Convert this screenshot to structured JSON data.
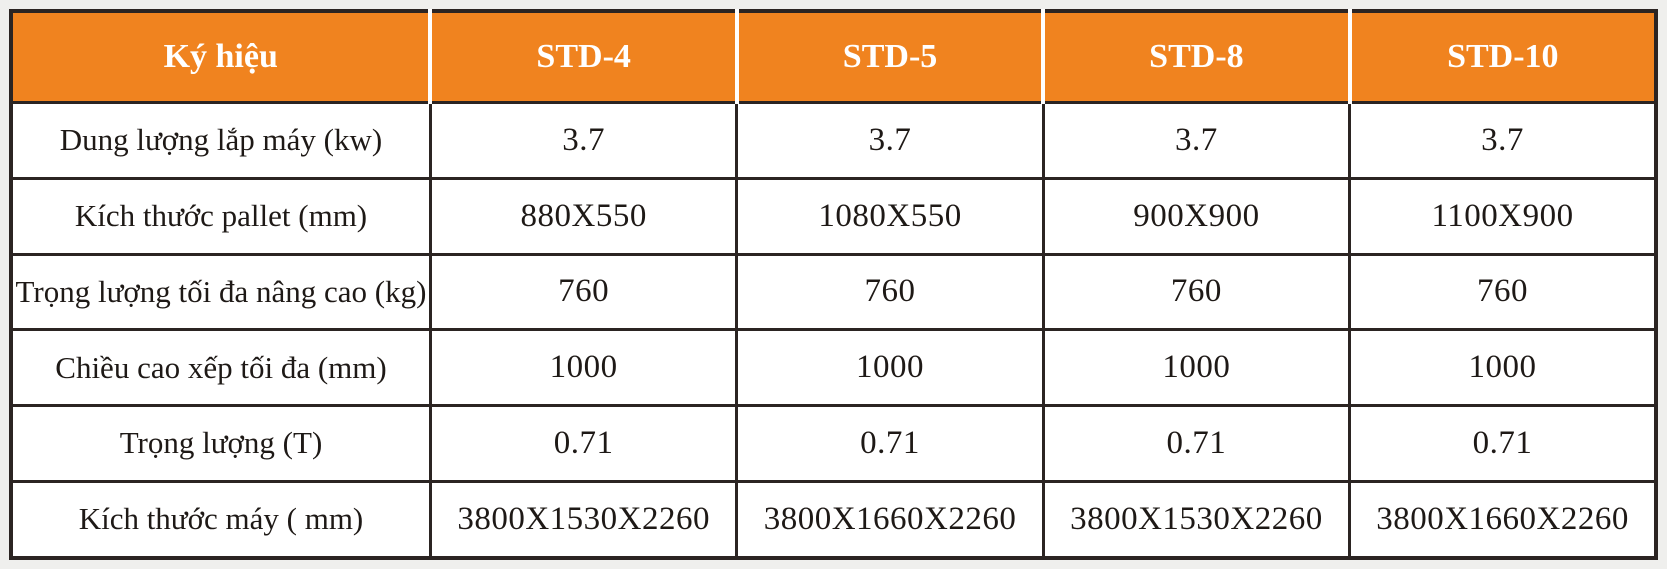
{
  "table": {
    "header": {
      "label_col": "Ký hiệu",
      "columns": [
        "STD-4",
        "STD-5",
        "STD-8",
        "STD-10"
      ]
    },
    "rows": [
      {
        "label": "Dung lượng lắp máy (kw)",
        "values": [
          "3.7",
          "3.7",
          "3.7",
          "3.7"
        ]
      },
      {
        "label": "Kích thước pallet (mm)",
        "values": [
          "880X550",
          "1080X550",
          "900X900",
          "1100X900"
        ]
      },
      {
        "label": "Trọng lượng tối đa nâng cao (kg)",
        "values": [
          "760",
          "760",
          "760",
          "760"
        ]
      },
      {
        "label": "Chiều cao xếp tối đa (mm)",
        "values": [
          "1000",
          "1000",
          "1000",
          "1000"
        ]
      },
      {
        "label": "Trọng lượng (T)",
        "values": [
          "0.71",
          "0.71",
          "0.71",
          "0.71"
        ]
      },
      {
        "label": "Kích thước máy ( mm)",
        "values": [
          "3800X1530X2260",
          "3800X1660X2260",
          "3800X1530X2260",
          "3800X1660X2260"
        ]
      }
    ],
    "colors": {
      "header_bg": "#F0831F",
      "header_text": "#FFFFFF",
      "body_text": "#1E1916",
      "grid_border": "#2B2422",
      "page_bg": "#EFEFED"
    }
  }
}
